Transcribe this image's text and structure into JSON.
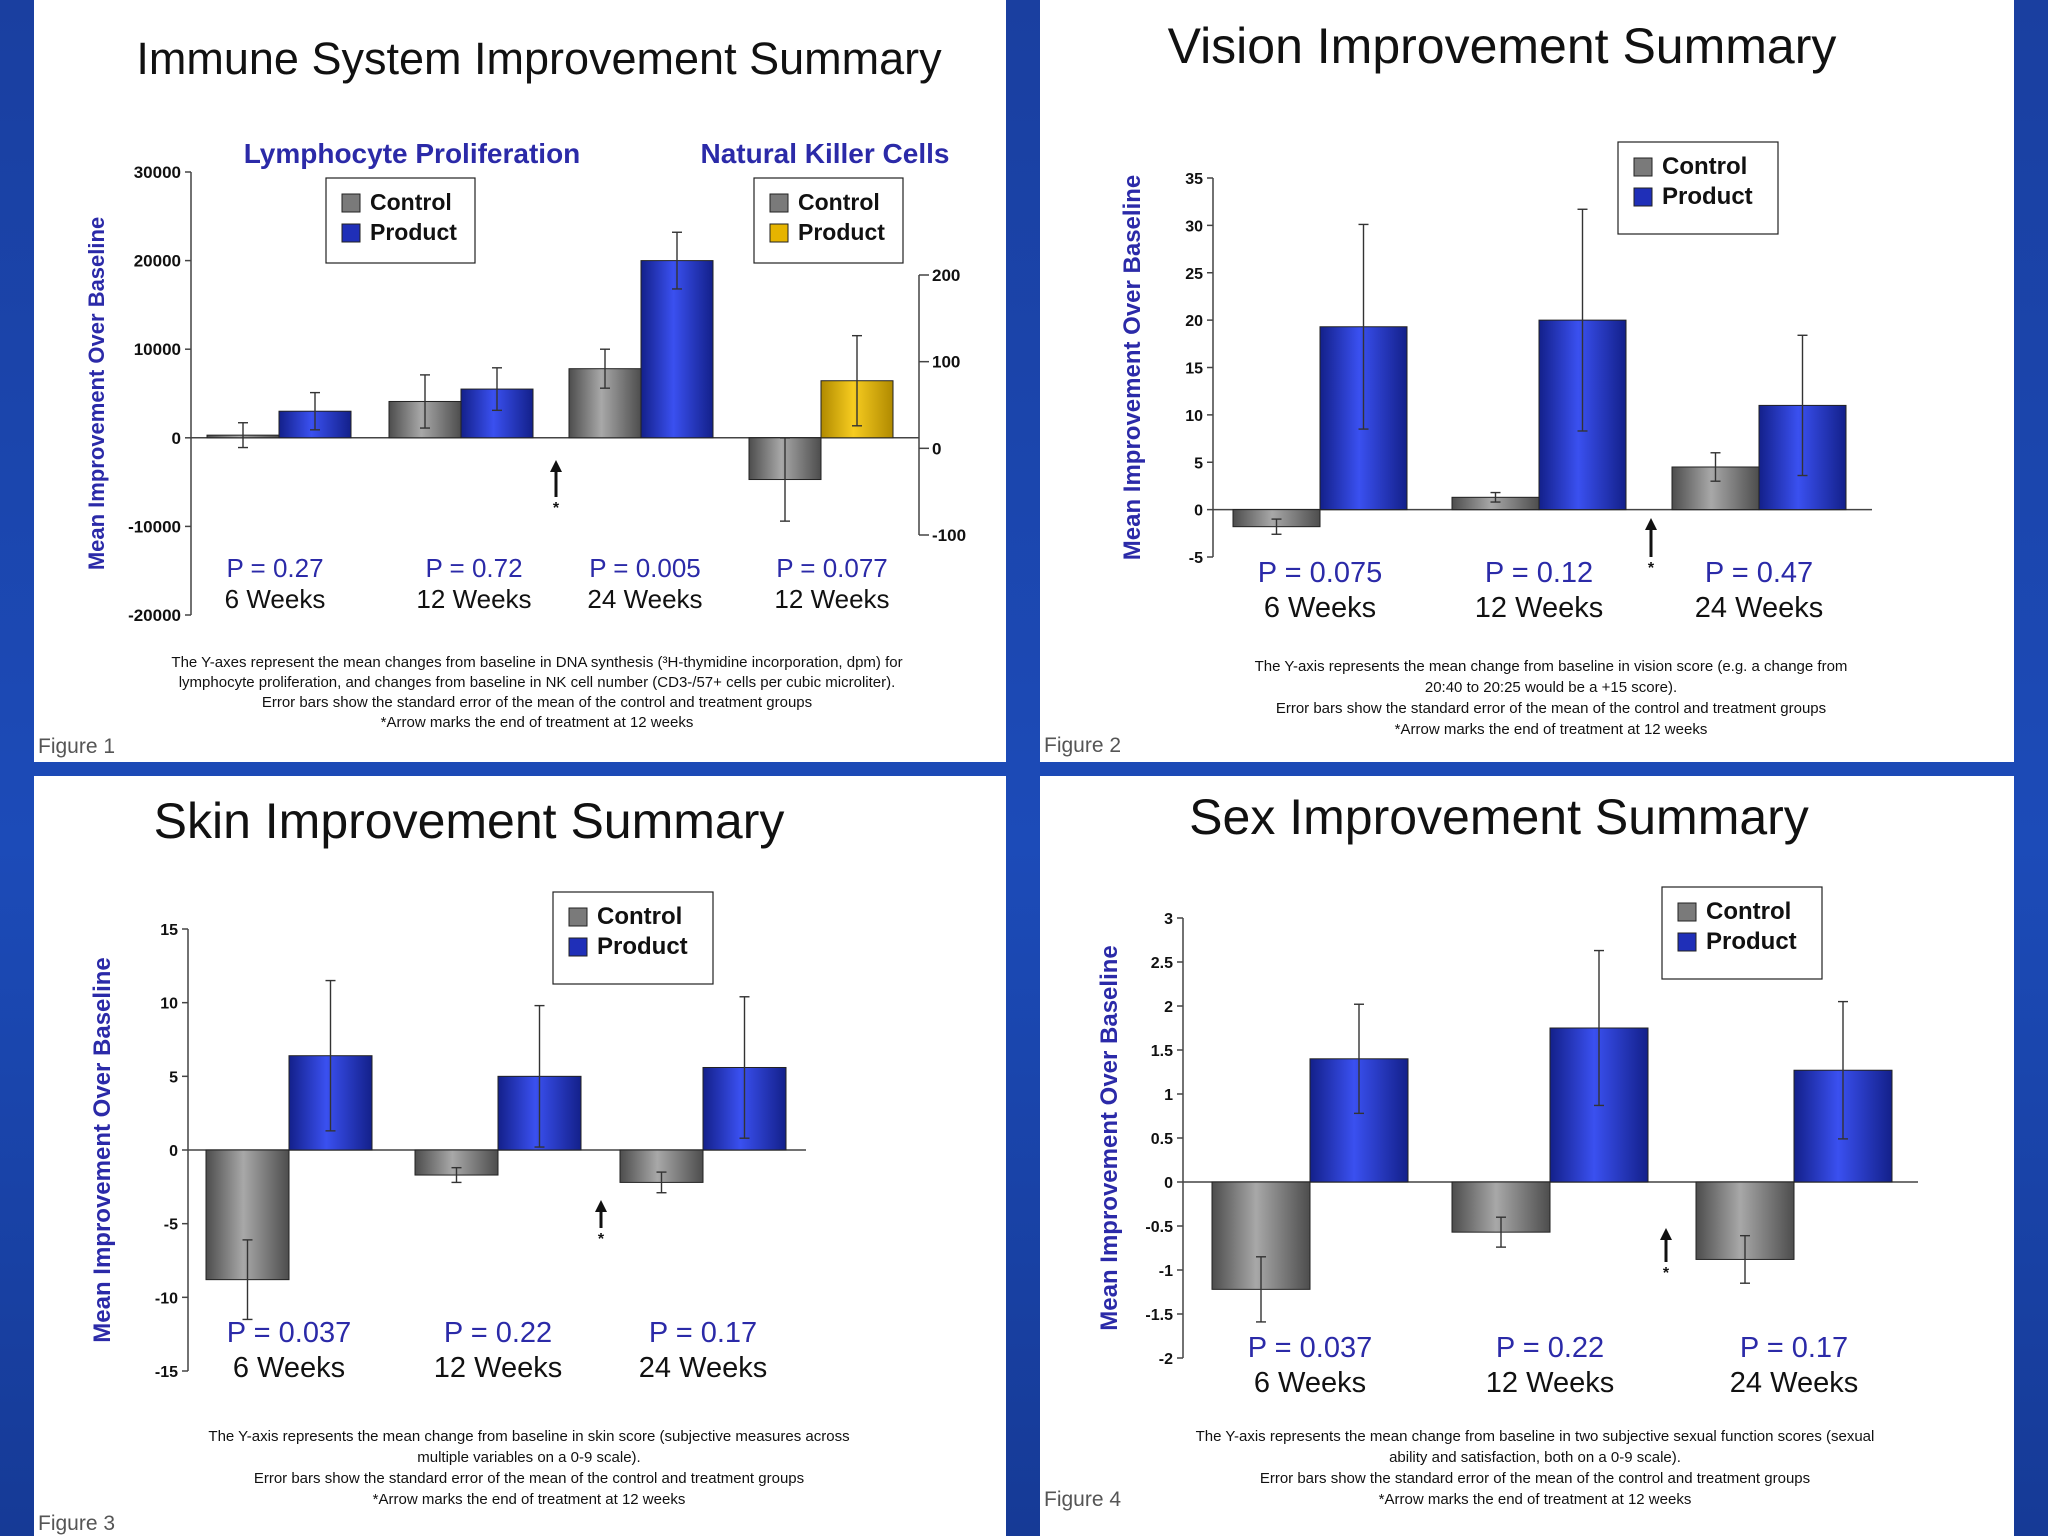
{
  "chart_data": [
    {
      "type": "bar",
      "title": "Immune System Improvement Summary",
      "figure_label": "Figure 1",
      "ylabel": "Mean Improvement Over Baseline",
      "left_axis": {
        "ylim": [
          -20000,
          30000
        ],
        "ticks": [
          "30000",
          "20000",
          "10000",
          "0",
          "-10000",
          "-20000"
        ]
      },
      "right_axis": {
        "ylim": [
          -100,
          200
        ],
        "ticks": [
          "200",
          "100",
          "0",
          "-100"
        ]
      },
      "subtitles": [
        "Lymphocyte Proliferation",
        "Natural Killer Cells"
      ],
      "legends": [
        {
          "items": [
            {
              "name": "Control",
              "color": "#7a7a7a"
            },
            {
              "name": "Product",
              "color": "#1f2fb8"
            }
          ]
        },
        {
          "items": [
            {
              "name": "Control",
              "color": "#7a7a7a"
            },
            {
              "name": "Product",
              "color": "#e6b400"
            }
          ]
        }
      ],
      "groups": [
        {
          "label": "6 Weeks",
          "p": "P = 0.27",
          "axis": "left",
          "control": {
            "value": 300,
            "err": 1400
          },
          "product": {
            "value": 3000,
            "err": 2100,
            "color": "#1f2fb8"
          }
        },
        {
          "label": "12 Weeks",
          "p": "P = 0.72",
          "axis": "left",
          "control": {
            "value": 4100,
            "err": 3000
          },
          "product": {
            "value": 5500,
            "err": 2400,
            "color": "#1f2fb8"
          }
        },
        {
          "label": "24 Weeks",
          "p": "P = 0.005",
          "axis": "left",
          "control": {
            "value": 7800,
            "err": 2200
          },
          "product": {
            "value": 20000,
            "err": 3200,
            "color": "#1f2fb8"
          }
        },
        {
          "label": "12 Weeks",
          "p": "P = 0.077",
          "axis": "right",
          "control": {
            "value": -36,
            "err": 48
          },
          "product": {
            "value": 78,
            "err": 52,
            "color": "#e6b400"
          }
        }
      ],
      "arrow_after_group": 1,
      "caption": [
        "The Y-axes represent the mean changes from baseline in DNA synthesis (³H-thymidine incorporation, dpm) for",
        "lymphocyte proliferation, and changes from baseline in NK cell number (CD3-/57+ cells per cubic microliter).",
        "Error bars show the standard error of the mean of the control and treatment groups",
        "*Arrow marks the end of treatment at 12 weeks"
      ]
    },
    {
      "type": "bar",
      "title": "Vision Improvement Summary",
      "figure_label": "Figure 2",
      "ylabel": "Mean Improvement Over Baseline",
      "ylim": [
        -5,
        35
      ],
      "ticks": [
        "35",
        "30",
        "25",
        "20",
        "15",
        "10",
        "5",
        "0",
        "-5"
      ],
      "legend": [
        {
          "name": "Control",
          "color": "#7a7a7a"
        },
        {
          "name": "Product",
          "color": "#1f2fb8"
        }
      ],
      "groups": [
        {
          "label": "6 Weeks",
          "p": "P = 0.075",
          "control": {
            "value": -1.8,
            "err": 0.8
          },
          "product": {
            "value": 19.3,
            "err": 10.8
          }
        },
        {
          "label": "12 Weeks",
          "p": "P = 0.12",
          "control": {
            "value": 1.3,
            "err": 0.5
          },
          "product": {
            "value": 20,
            "err": 11.7
          }
        },
        {
          "label": "24 Weeks",
          "p": "P = 0.47",
          "control": {
            "value": 4.5,
            "err": 1.5
          },
          "product": {
            "value": 11,
            "err": 7.4
          }
        }
      ],
      "arrow_after_group": 1,
      "caption": [
        "The Y-axis represents the mean change from baseline in vision score (e.g. a change from",
        "20:40 to 20:25 would be a +15 score).",
        "Error bars show the standard error of the mean of the control and treatment groups",
        "*Arrow marks the end of treatment at 12 weeks"
      ]
    },
    {
      "type": "bar",
      "title": "Skin Improvement Summary",
      "figure_label": "Figure 3",
      "ylabel": "Mean Improvement Over Baseline",
      "ylim": [
        -15,
        15
      ],
      "ticks": [
        "15",
        "10",
        "5",
        "0",
        "-5",
        "-10",
        "-15"
      ],
      "legend": [
        {
          "name": "Control",
          "color": "#7a7a7a"
        },
        {
          "name": "Product",
          "color": "#1f2fb8"
        }
      ],
      "groups": [
        {
          "label": "6 Weeks",
          "p": "P = 0.037",
          "control": {
            "value": -8.8,
            "err": 2.7
          },
          "product": {
            "value": 6.4,
            "err": 5.1
          }
        },
        {
          "label": "12 Weeks",
          "p": "P = 0.22",
          "control": {
            "value": -1.7,
            "err": 0.5
          },
          "product": {
            "value": 5,
            "err": 4.8
          }
        },
        {
          "label": "24 Weeks",
          "p": "P = 0.17",
          "control": {
            "value": -2.2,
            "err": 0.7
          },
          "product": {
            "value": 5.6,
            "err": 4.8
          }
        }
      ],
      "arrow_after_group": 1,
      "caption": [
        "The Y-axis represents the mean change from baseline in skin score (subjective measures across",
        "multiple variables on a 0-9 scale).",
        "Error bars show the standard error of the mean of the control and treatment groups",
        "*Arrow marks the end of treatment at 12 weeks"
      ]
    },
    {
      "type": "bar",
      "title": "Sex Improvement Summary",
      "figure_label": "Figure 4",
      "ylabel": "Mean Improvement Over Baseline",
      "ylim": [
        -2,
        3
      ],
      "ticks": [
        "3",
        "2.5",
        "2",
        "1.5",
        "1",
        "0.5",
        "0",
        "-0.5",
        "-1",
        "-1.5",
        "-2"
      ],
      "legend": [
        {
          "name": "Control",
          "color": "#7a7a7a"
        },
        {
          "name": "Product",
          "color": "#1f2fb8"
        }
      ],
      "groups": [
        {
          "label": "6 Weeks",
          "p": "P = 0.037",
          "control": {
            "value": -1.22,
            "err": 0.37
          },
          "product": {
            "value": 1.4,
            "err": 0.62
          }
        },
        {
          "label": "12 Weeks",
          "p": "P = 0.22",
          "control": {
            "value": -0.57,
            "err": 0.17
          },
          "product": {
            "value": 1.75,
            "err": 0.88
          }
        },
        {
          "label": "24 Weeks",
          "p": "P = 0.17",
          "control": {
            "value": -0.88,
            "err": 0.27
          },
          "product": {
            "value": 1.27,
            "err": 0.78
          }
        }
      ],
      "arrow_after_group": 1,
      "caption": [
        "The Y-axis represents the mean change from baseline in two subjective sexual function scores (sexual",
        "ability and satisfaction, both on a 0-9 scale).",
        "Error bars show the standard error of the mean of the control and treatment groups",
        "*Arrow marks the end of treatment at 12 weeks"
      ]
    }
  ]
}
